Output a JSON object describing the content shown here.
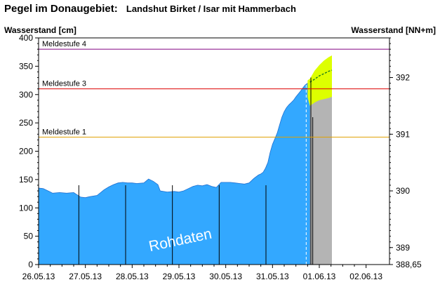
{
  "header": {
    "title": "Pegel im Donaugebiet:",
    "station": "Landshut Birket / Isar mit Hammerbach"
  },
  "chart_data": {
    "type": "area",
    "ylabel_left": "Wasserstand [cm]",
    "ylabel_right": "Wasserstand [NN+m]",
    "ylim": [
      0,
      400
    ],
    "yticks": [
      0,
      50,
      100,
      150,
      200,
      250,
      300,
      350,
      400
    ],
    "right_axis": {
      "ticks": [
        {
          "label": "392",
          "cm": 330
        },
        {
          "label": "391",
          "cm": 230
        },
        {
          "label": "390",
          "cm": 130
        },
        {
          "label": "389",
          "cm": 30
        },
        {
          "label": "388,65",
          "cm": 0
        }
      ]
    },
    "xlim": [
      0,
      7.5
    ],
    "x_tick_labels": [
      "26.05.13",
      "27.05.13",
      "28.05.13",
      "29.05.13",
      "30.05.13",
      "31.05.13",
      "01.06.13",
      "02.06.13"
    ],
    "thresholds": [
      {
        "label": "Meldestufe 4",
        "value": 380,
        "color": "#800080"
      },
      {
        "label": "Meldestufe 3",
        "value": 310,
        "color": "#dd0000"
      },
      {
        "label": "Meldestufe 1",
        "value": 225,
        "color": "#e0a000"
      }
    ],
    "series": [
      {
        "kind": "measured",
        "color": "#33a8ff",
        "x": [
          0,
          0.1,
          0.25,
          0.3,
          0.45,
          0.6,
          0.75,
          0.9,
          1.0,
          1.1,
          1.25,
          1.4,
          1.5,
          1.6,
          1.7,
          1.8,
          1.9,
          2.0,
          2.1,
          2.25,
          2.35,
          2.4,
          2.45,
          2.55,
          2.6,
          2.75,
          2.9,
          3.0,
          3.1,
          3.2,
          3.3,
          3.4,
          3.5,
          3.6,
          3.7,
          3.8,
          3.9,
          4.0,
          4.1,
          4.2,
          4.3,
          4.4,
          4.5,
          4.6,
          4.7,
          4.75,
          4.8,
          4.85,
          4.9,
          4.95,
          5.0,
          5.05,
          5.1,
          5.15,
          5.2,
          5.25,
          5.3,
          5.35,
          5.4,
          5.45,
          5.5,
          5.55,
          5.6,
          5.65,
          5.7,
          5.75,
          5.8
        ],
        "y": [
          135,
          134,
          128,
          126,
          127,
          126,
          127,
          119,
          118,
          120,
          122,
          132,
          137,
          141,
          144,
          145,
          144,
          144,
          143,
          144,
          151,
          149,
          147,
          141,
          130,
          128,
          129,
          128,
          130,
          134,
          138,
          140,
          139,
          141,
          138,
          136,
          145,
          145,
          145,
          144,
          143,
          142,
          144,
          152,
          158,
          160,
          163,
          170,
          180,
          198,
          212,
          222,
          232,
          246,
          260,
          270,
          277,
          282,
          286,
          290,
          296,
          301,
          306,
          312,
          317,
          320,
          322
        ]
      },
      {
        "kind": "forecast",
        "color": "#b4b4b4",
        "x": [
          5.8,
          5.9,
          6.0,
          6.1,
          6.2,
          6.27
        ],
        "y": [
          322,
          327,
          333,
          337,
          341,
          343
        ]
      }
    ],
    "forecast_band": {
      "color": "#ddff00",
      "x": [
        5.75,
        5.8,
        5.9,
        6.0,
        6.1,
        6.2,
        6.27
      ],
      "upper": [
        325,
        328,
        342,
        352,
        360,
        366,
        369
      ],
      "lower": [
        295,
        280,
        286,
        290,
        292,
        294,
        296
      ]
    },
    "vertical_markers": [
      {
        "x": 5.72,
        "color": "#ffffff",
        "style": "dashed"
      },
      {
        "x": 5.82,
        "color": "#000000",
        "style": "solid"
      }
    ],
    "annotation": "Rohdaten"
  }
}
